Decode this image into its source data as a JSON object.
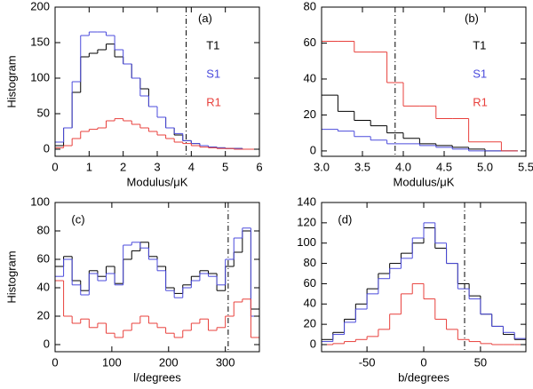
{
  "chart_data": [
    {
      "type": "histogram",
      "label": "(a)",
      "xlabel": "Modulus/μK",
      "ylabel": "Histogram",
      "legend": true,
      "bins": [
        0,
        0.25,
        0.5,
        0.75,
        1,
        1.25,
        1.5,
        1.75,
        2,
        2.25,
        2.5,
        2.75,
        3,
        3.25,
        3.5,
        3.75,
        4,
        4.25,
        4.5,
        4.75,
        5,
        5.25,
        5.5,
        5.75,
        6
      ],
      "series": [
        {
          "name": "T1",
          "color": "#000000",
          "values": [
            5,
            30,
            80,
            130,
            135,
            140,
            148,
            130,
            120,
            100,
            85,
            60,
            45,
            30,
            20,
            12,
            8,
            5,
            3,
            2,
            1,
            1,
            0,
            0
          ]
        },
        {
          "name": "S1",
          "color": "#4b4bdc",
          "values": [
            10,
            30,
            95,
            160,
            165,
            165,
            160,
            140,
            120,
            100,
            75,
            60,
            45,
            30,
            22,
            12,
            8,
            5,
            3,
            2,
            1,
            1,
            0,
            0
          ]
        },
        {
          "name": "R1",
          "color": "#e8403c",
          "values": [
            2,
            5,
            15,
            25,
            28,
            30,
            40,
            43,
            40,
            35,
            30,
            25,
            20,
            15,
            10,
            8,
            5,
            3,
            2,
            1,
            1,
            0,
            0,
            0
          ]
        }
      ],
      "vline": 3.85,
      "xlim": [
        0,
        6
      ],
      "xticks": [
        0,
        1,
        2,
        3,
        4,
        5,
        6
      ],
      "ylim": [
        -10,
        200
      ],
      "yticks": [
        0,
        50,
        100,
        150,
        200
      ]
    },
    {
      "type": "histogram",
      "label": "(b)",
      "xlabel": "Modulus/μK",
      "legend": true,
      "bins": [
        3,
        3.2,
        3.4,
        3.6,
        3.8,
        4,
        4.2,
        4.4,
        4.6,
        4.8,
        5,
        5.2,
        5.4
      ],
      "series": [
        {
          "name": "T1",
          "color": "#000000",
          "values": [
            31,
            22,
            17,
            14,
            10,
            7,
            4,
            3,
            2,
            1,
            0,
            0
          ]
        },
        {
          "name": "S1",
          "color": "#4b4bdc",
          "values": [
            12,
            11,
            8,
            6,
            4,
            4,
            3,
            2,
            1,
            0,
            0,
            0
          ]
        },
        {
          "name": "R1",
          "color": "#e8403c",
          "values": [
            61,
            61,
            55,
            55,
            38,
            25,
            25,
            18,
            18,
            5,
            5,
            0
          ]
        }
      ],
      "vline": 3.9,
      "xlim": [
        3,
        5.5
      ],
      "xticks": [
        {
          "value": 3,
          "label": "3.0"
        },
        3.5,
        {
          "value": 4,
          "label": "4.0"
        },
        4.5,
        {
          "value": 5,
          "label": "5.0"
        },
        5.5
      ],
      "ylim": [
        -3,
        80
      ],
      "yticks": [
        0,
        20,
        40,
        60,
        80
      ]
    },
    {
      "type": "histogram",
      "label": "(c)",
      "xlabel": "l/degrees",
      "ylabel": "Histogram",
      "legend": false,
      "bins": [
        0,
        15,
        30,
        45,
        60,
        75,
        90,
        105,
        120,
        135,
        150,
        165,
        180,
        195,
        210,
        225,
        240,
        255,
        270,
        285,
        300,
        315,
        330,
        345,
        360
      ],
      "series": [
        {
          "color": "#000000",
          "values": [
            55,
            62,
            45,
            38,
            52,
            48,
            55,
            43,
            60,
            66,
            72,
            62,
            55,
            40,
            36,
            42,
            48,
            52,
            50,
            38,
            55,
            65,
            80,
            25
          ]
        },
        {
          "color": "#4b4bdc",
          "values": [
            48,
            60,
            42,
            35,
            50,
            45,
            50,
            42,
            70,
            72,
            68,
            60,
            52,
            38,
            33,
            40,
            45,
            50,
            48,
            42,
            60,
            75,
            82,
            20
          ]
        },
        {
          "color": "#e8403c",
          "values": [
            45,
            20,
            15,
            18,
            12,
            15,
            8,
            5,
            10,
            15,
            20,
            15,
            12,
            8,
            5,
            10,
            15,
            18,
            10,
            12,
            20,
            30,
            32,
            5
          ]
        }
      ],
      "vline": 305,
      "xlim": [
        0,
        360
      ],
      "xticks": [
        0,
        100,
        200,
        300
      ],
      "ylim": [
        -5,
        100
      ],
      "yticks": [
        0,
        20,
        40,
        60,
        80,
        100
      ]
    },
    {
      "type": "histogram",
      "label": "(d)",
      "xlabel": "b/degrees",
      "legend": false,
      "bins": [
        -90,
        -80,
        -70,
        -60,
        -50,
        -40,
        -30,
        -20,
        -10,
        0,
        10,
        20,
        30,
        40,
        50,
        60,
        70,
        80,
        90
      ],
      "series": [
        {
          "color": "#000000",
          "values": [
            5,
            12,
            25,
            40,
            55,
            70,
            80,
            90,
            100,
            115,
            95,
            80,
            60,
            48,
            30,
            18,
            10,
            5
          ]
        },
        {
          "color": "#4b4bdc",
          "values": [
            3,
            10,
            22,
            35,
            50,
            65,
            75,
            85,
            105,
            120,
            100,
            80,
            55,
            45,
            30,
            18,
            12,
            6
          ]
        },
        {
          "color": "#e8403c",
          "values": [
            0,
            1,
            3,
            5,
            8,
            15,
            30,
            50,
            60,
            45,
            25,
            15,
            5,
            3,
            1,
            0,
            0,
            0
          ]
        }
      ],
      "vline": 36,
      "xlim": [
        -90,
        90
      ],
      "xticks": [
        -50,
        0,
        50
      ],
      "ylim": [
        -7,
        140
      ],
      "yticks": [
        0,
        20,
        40,
        60,
        80,
        100,
        120,
        140
      ]
    }
  ]
}
